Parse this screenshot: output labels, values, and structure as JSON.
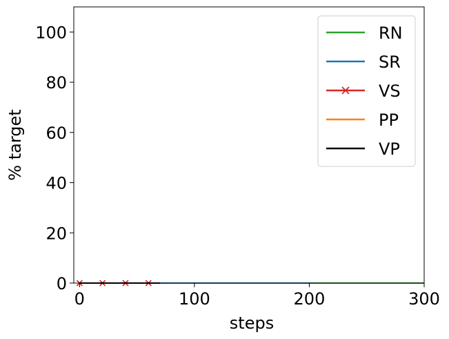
{
  "chart_data": {
    "type": "line",
    "title": "",
    "xlabel": "steps",
    "ylabel": "% target",
    "xlim": [
      -5,
      300
    ],
    "ylim": [
      0,
      110
    ],
    "xticks": [
      0,
      100,
      200,
      300
    ],
    "yticks": [
      0,
      20,
      40,
      60,
      80,
      100
    ],
    "grid": false,
    "legend_position": "top-right",
    "series": [
      {
        "name": "RN",
        "color": "#2ca02c",
        "marker": "none",
        "x": [
          0,
          300
        ],
        "y": [
          0,
          0
        ]
      },
      {
        "name": "SR",
        "color": "#1f77b4",
        "marker": "none",
        "x": [
          0,
          200
        ],
        "y": [
          0,
          0
        ]
      },
      {
        "name": "VS",
        "color": "#d62728",
        "marker": "x",
        "x": [
          0,
          20,
          40,
          60
        ],
        "y": [
          0,
          0,
          0,
          0
        ]
      },
      {
        "name": "PP",
        "color": "#ff7f0e",
        "marker": "none",
        "x": [
          0,
          70
        ],
        "y": [
          0,
          0
        ]
      },
      {
        "name": "VP",
        "color": "#000000",
        "marker": "none",
        "x": [
          0,
          70
        ],
        "y": [
          0,
          0
        ]
      }
    ]
  }
}
